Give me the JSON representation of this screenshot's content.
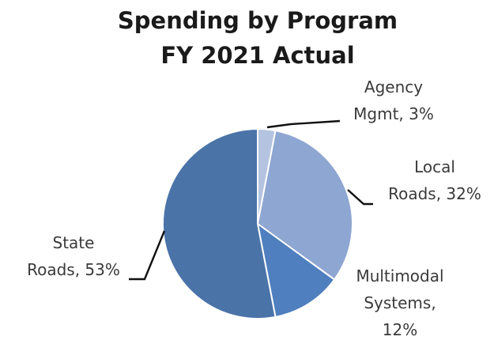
{
  "chart_data": {
    "type": "pie",
    "title": [
      "Spending by Program",
      "FY 2021 Actual"
    ],
    "slices": [
      {
        "label": [
          "Agency",
          "Mgmt, 3%"
        ],
        "value": 3,
        "color": "#b4c4e0"
      },
      {
        "label": [
          "Local",
          "Roads, 32%"
        ],
        "value": 32,
        "color": "#8ea6d2"
      },
      {
        "label": [
          "Multimodal",
          "Systems,",
          "12%"
        ],
        "value": 12,
        "color": "#4f7fbe"
      },
      {
        "label": [
          "State",
          "Roads, 53%"
        ],
        "value": 53,
        "color": "#4a73a8"
      }
    ],
    "legend": "none"
  }
}
